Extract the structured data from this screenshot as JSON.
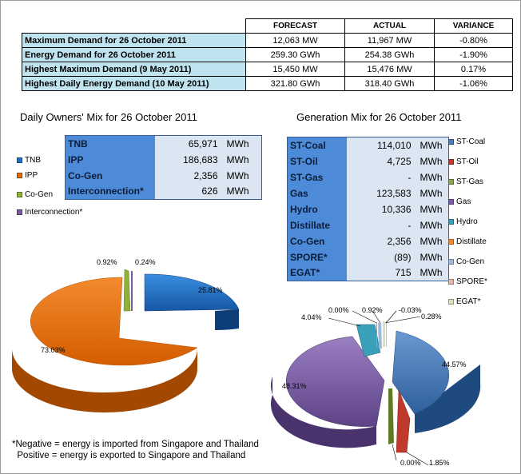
{
  "summary": {
    "headers": [
      "FORECAST",
      "ACTUAL",
      "VARIANCE"
    ],
    "rows": [
      {
        "label": "Maximum Demand for 26 October 2011",
        "forecast": "12,063  MW",
        "actual": "11,967  MW",
        "variance": "-0.80%"
      },
      {
        "label": "Energy Demand for 26 October 2011",
        "forecast": "259.30  GWh",
        "actual": "254.38  GWh",
        "variance": "-1.90%"
      },
      {
        "label": "Highest Maximum Demand (9 May 2011)",
        "forecast": "15,450  MW",
        "actual": "15,476  MW",
        "variance": "0.17%"
      },
      {
        "label": "Highest Daily Energy Demand (10 May 2011)",
        "forecast": "321.80  GWh",
        "actual": "318.40  GWh",
        "variance": "-1.06%"
      }
    ]
  },
  "owners": {
    "title": "Daily Owners' Mix for 26 October 2011",
    "legend": [
      {
        "label": "TNB",
        "color": "#1f6fc4"
      },
      {
        "label": "IPP",
        "color": "#e46b0a"
      },
      {
        "label": "Co-Gen",
        "color": "#8fb23a"
      },
      {
        "label": "Interconnection*",
        "color": "#7a5aa3"
      }
    ],
    "table": [
      {
        "name": "TNB",
        "value": "65,971",
        "unit": "MWh"
      },
      {
        "name": "IPP",
        "value": "186,683",
        "unit": "MWh"
      },
      {
        "name": "Co-Gen",
        "value": "2,356",
        "unit": "MWh"
      },
      {
        "name": "Interconnection*",
        "value": "626",
        "unit": "MWh"
      }
    ],
    "pie_labels": {
      "tnb": "25.81%",
      "ipp": "73.03%",
      "cogen": "0.92%",
      "inter": "0.24%"
    }
  },
  "generation": {
    "title": "Generation Mix for 26 October 2011",
    "legend": [
      {
        "label": "ST-Coal",
        "color": "#4a7ebb"
      },
      {
        "label": "ST-Oil",
        "color": "#c0392b"
      },
      {
        "label": "ST-Gas",
        "color": "#8aa64a"
      },
      {
        "label": "Gas",
        "color": "#7b5ea6"
      },
      {
        "label": "Hydro",
        "color": "#3a9fb8"
      },
      {
        "label": "Distillate",
        "color": "#f08a2c"
      },
      {
        "label": "Co-Gen",
        "color": "#9cb9dc"
      },
      {
        "label": "SPORE*",
        "color": "#e6b8a8"
      },
      {
        "label": "EGAT*",
        "color": "#d6e3bc"
      }
    ],
    "table": [
      {
        "name": "ST-Coal",
        "value": "114,010",
        "unit": "MWh"
      },
      {
        "name": "ST-Oil",
        "value": "4,725",
        "unit": "MWh"
      },
      {
        "name": "ST-Gas",
        "value": "-",
        "unit": "MWh"
      },
      {
        "name": "Gas",
        "value": "123,583",
        "unit": "MWh"
      },
      {
        "name": "Hydro",
        "value": "10,336",
        "unit": "MWh"
      },
      {
        "name": "Distillate",
        "value": "-",
        "unit": "MWh"
      },
      {
        "name": "Co-Gen",
        "value": "2,356",
        "unit": "MWh"
      },
      {
        "name": "SPORE*",
        "value": "(89)",
        "unit": "MWh"
      },
      {
        "name": "EGAT*",
        "value": "715",
        "unit": "MWh"
      }
    ],
    "pie_labels": {
      "coal": "44.57%",
      "oil": "1.85%",
      "stgas": "0.00%",
      "gas": "48.31%",
      "hydro": "4.04%",
      "distillate": "0.00%",
      "cogen": "0.92%",
      "spore": "-0.03%",
      "egat": "0.28%"
    }
  },
  "footnote": {
    "line1": "*Negative = energy is imported from Singapore and Thailand",
    "line2": "  Positive = energy is exported to Singapore and Thailand"
  },
  "chart_data": [
    {
      "type": "pie",
      "title": "Daily Owners' Mix for 26 October 2011",
      "categories": [
        "TNB",
        "IPP",
        "Co-Gen",
        "Interconnection*"
      ],
      "values": [
        25.81,
        73.03,
        0.92,
        0.24
      ]
    },
    {
      "type": "pie",
      "title": "Generation Mix for 26 October 2011",
      "categories": [
        "ST-Coal",
        "ST-Oil",
        "ST-Gas",
        "Gas",
        "Hydro",
        "Distillate",
        "Co-Gen",
        "SPORE*",
        "EGAT*"
      ],
      "values": [
        44.57,
        1.85,
        0.0,
        48.31,
        4.04,
        0.0,
        0.92,
        -0.03,
        0.28
      ]
    }
  ]
}
